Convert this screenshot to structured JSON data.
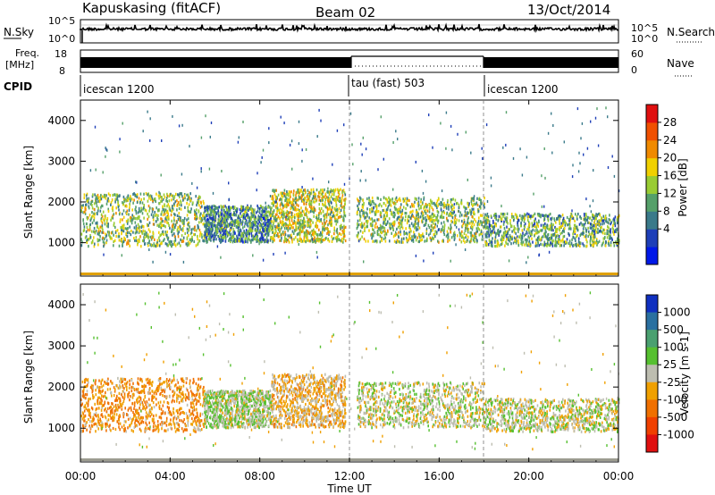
{
  "header": {
    "station": "Kapuskasing (fitACF)",
    "beam": "Beam 02",
    "date": "13/Oct/2014"
  },
  "noise_panel": {
    "ylabel": "N.Sky",
    "tick_top": "10^5",
    "tick_bottom": "10^0",
    "right_label": "N.Search",
    "right_tick_top": "10^5",
    "right_tick_bottom": "10^0"
  },
  "freq_panel": {
    "ylabel_line1": "Freq.",
    "ylabel_line2": "[MHz]",
    "tick_top": "18",
    "tick_bottom": "8",
    "right_label": "Nave",
    "right_tick_top": "60",
    "right_tick_bottom": "0"
  },
  "cpid_panel": {
    "label": "CPID",
    "segments": [
      {
        "name": "icescan 1200",
        "start_hour": 0,
        "end_hour": 12
      },
      {
        "name": "tau (fast) 503",
        "start_hour": 12,
        "end_hour": 18
      },
      {
        "name": "icescan 1200",
        "start_hour": 18,
        "end_hour": 24
      }
    ]
  },
  "x_axis": {
    "label": "Time UT",
    "tick_labels": [
      "00:00",
      "04:00",
      "08:00",
      "12:00",
      "16:00",
      "20:00",
      "00:00"
    ]
  },
  "power_colorbar": {
    "label": "Power [dB]",
    "ticks": [
      "28",
      "24",
      "20",
      "16",
      "12",
      "8",
      "4"
    ],
    "colors": [
      "#0018e8",
      "#1e3fb8",
      "#3a7a8a",
      "#55a06a",
      "#99cc33",
      "#f0d000",
      "#f08a00",
      "#f05000",
      "#e01010"
    ]
  },
  "velocity_colorbar": {
    "label": "Velocity [m s-1]",
    "ticks": [
      "1000",
      "500",
      "100",
      "25",
      "-25",
      "-100",
      "-500",
      "-1000"
    ],
    "colors": [
      "#1030c0",
      "#2a70a0",
      "#4aa070",
      "#56c030",
      "#bdbdb0",
      "#f0a000",
      "#f07000",
      "#f04000",
      "#e01010"
    ]
  },
  "chart_data": [
    {
      "type": "heatmap",
      "title": "Power",
      "ylabel": "Slant Range [km]",
      "xlabel": "",
      "ylim": [
        180,
        4500
      ],
      "xlim_hours": [
        0,
        24
      ],
      "yticks": [
        1000,
        2000,
        3000,
        4000
      ],
      "clim": [
        0,
        30
      ],
      "unit": "dB",
      "echo_regions": [
        {
          "hours": [
            0,
            5.5
          ],
          "range_km": [
            900,
            2200
          ],
          "value": 14
        },
        {
          "hours": [
            5.5,
            8.5
          ],
          "range_km": [
            1000,
            1900
          ],
          "value": 10
        },
        {
          "hours": [
            8.5,
            11.8
          ],
          "range_km": [
            1000,
            2300
          ],
          "value": 16
        },
        {
          "hours": [
            12.3,
            18
          ],
          "range_km": [
            1000,
            2100
          ],
          "value": 14
        },
        {
          "hours": [
            18,
            24
          ],
          "range_km": [
            900,
            1700
          ],
          "value": 12
        }
      ],
      "ground_scatter_floor_km": 200
    },
    {
      "type": "heatmap",
      "title": "Velocity",
      "ylabel": "Slant Range [km]",
      "xlabel": "Time UT",
      "ylim": [
        180,
        4500
      ],
      "xlim_hours": [
        0,
        24
      ],
      "yticks": [
        1000,
        2000,
        3000,
        4000
      ],
      "clim": [
        -1000,
        1000
      ],
      "unit": "m s-1",
      "echo_regions": [
        {
          "hours": [
            0,
            5.5
          ],
          "range_km": [
            900,
            2200
          ],
          "value": -300
        },
        {
          "hours": [
            5.5,
            8.5
          ],
          "range_km": [
            1000,
            1900
          ],
          "value": 80
        },
        {
          "hours": [
            8.5,
            11.8
          ],
          "range_km": [
            1000,
            2300
          ],
          "value": -150
        },
        {
          "hours": [
            12.3,
            18
          ],
          "range_km": [
            1000,
            2100
          ],
          "value": 0
        },
        {
          "hours": [
            18,
            24
          ],
          "range_km": [
            900,
            1700
          ],
          "value": 0
        }
      ]
    }
  ]
}
